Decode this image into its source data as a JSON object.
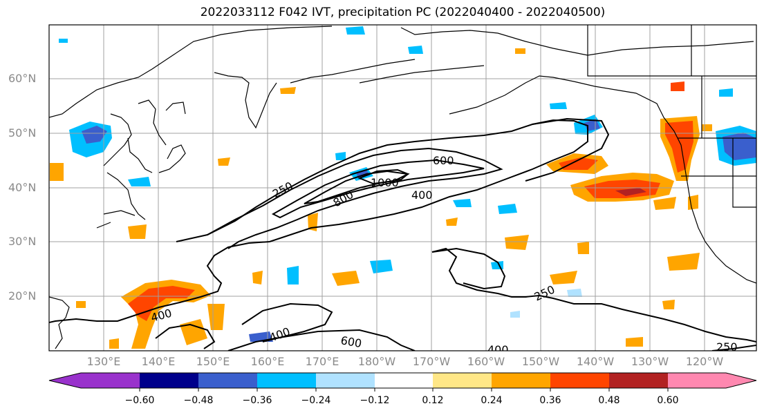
{
  "title": "2022033112 F042 IVT, precipitation PC (2022040400 - 2022040500)",
  "lat_labels": [
    "60°N",
    "50°N",
    "40°N",
    "30°N",
    "20°N"
  ],
  "lon_labels": [
    "130°E",
    "140°E",
    "150°E",
    "160°E",
    "170°E",
    "180°W",
    "170°W",
    "160°W",
    "150°W",
    "140°W",
    "130°W",
    "120°W"
  ],
  "contour_labels": [
    "250",
    "600",
    "1000",
    "800",
    "400",
    "400",
    "600",
    "400",
    "250",
    "250",
    "400"
  ],
  "colorbar": {
    "tick_labels": [
      "−0.60",
      "−0.48",
      "−0.36",
      "−0.24",
      "−0.12",
      "0.12",
      "0.24",
      "0.36",
      "0.48",
      "0.60"
    ],
    "colors": [
      "#9932cc",
      "#00008b",
      "#3a5fcd",
      "#00bfff",
      "#b0e2ff",
      "#ffffff",
      "#ffe787",
      "#ffa500",
      "#ff4500",
      "#b22222",
      "#ff88b0"
    ]
  }
}
